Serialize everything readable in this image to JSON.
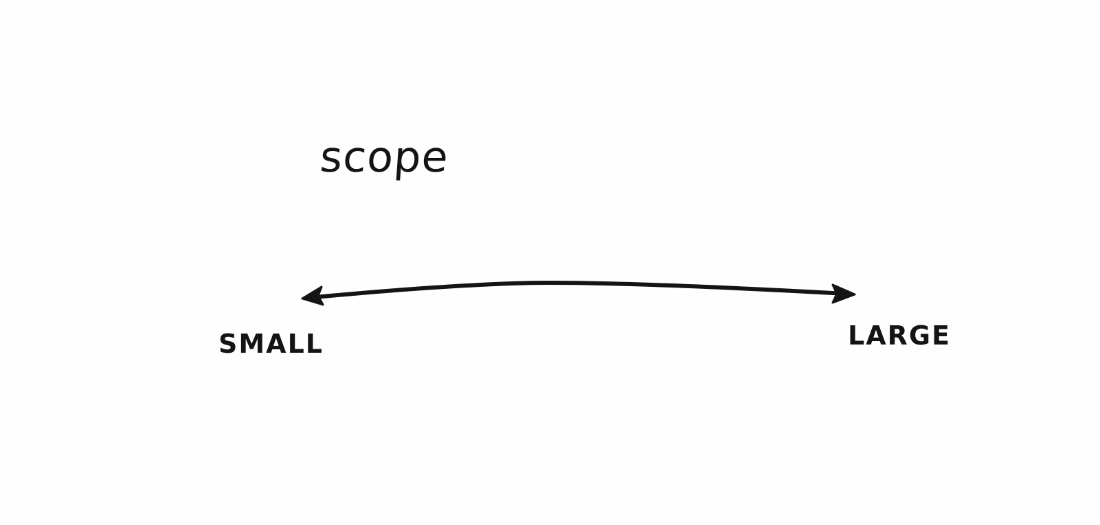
{
  "diagram": {
    "title": "scope",
    "left_end": "SMALL",
    "right_end": "LARGE",
    "colors": {
      "ink": "#141414",
      "paper": "#fefefe"
    }
  }
}
